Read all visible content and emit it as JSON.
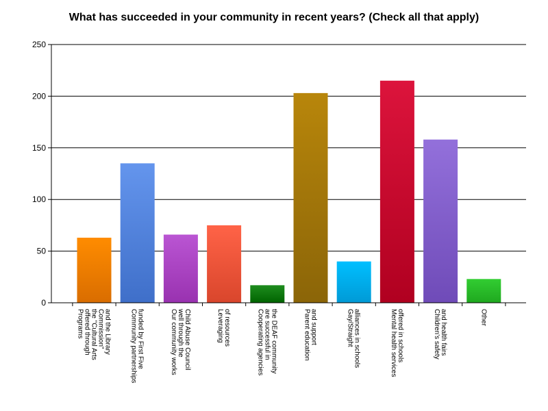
{
  "chart_data": {
    "type": "bar",
    "title": "What has succeeded in your community in recent years? (Check all that apply)",
    "xlabel": "",
    "ylabel": "",
    "ylim": [
      0,
      250
    ],
    "yticks": [
      0,
      50,
      100,
      150,
      200,
      250
    ],
    "grid": true,
    "legend": "none",
    "categories": [
      [
        "Programs",
        "offered through",
        "the \"Cultural Arts",
        "Commission\"",
        "and the Library"
      ],
      [
        "Community partnerships",
        "funded by First Five"
      ],
      [
        "Our community works",
        "well through the",
        "Child Abuse Council"
      ],
      [
        "Leveraging",
        "of resources"
      ],
      [
        "Cooperating agencies",
        "are successful in",
        "the DEAF community"
      ],
      [
        "Parent education",
        "and support"
      ],
      [
        "Gay/Straight",
        "alliances in schools"
      ],
      [
        "Mental health services",
        "offered in schools"
      ],
      [
        "Children's safety",
        "and health fairs"
      ],
      [
        "Other"
      ]
    ],
    "values": [
      63,
      135,
      66,
      75,
      17,
      203,
      40,
      215,
      158,
      23
    ],
    "colors": [
      [
        "#ff8c00",
        "#d96d00"
      ],
      [
        "#6495ed",
        "#3f6fc9"
      ],
      [
        "#ba55d3",
        "#9932b0"
      ],
      [
        "#ff6347",
        "#d9462c"
      ],
      [
        "#1e8c1e",
        "#006400"
      ],
      [
        "#b8860b",
        "#8b6508"
      ],
      [
        "#00bfff",
        "#009ad6"
      ],
      [
        "#dc143c",
        "#b00020"
      ],
      [
        "#9370db",
        "#6f4bb8"
      ],
      [
        "#32cd32",
        "#1fa81f"
      ]
    ]
  }
}
